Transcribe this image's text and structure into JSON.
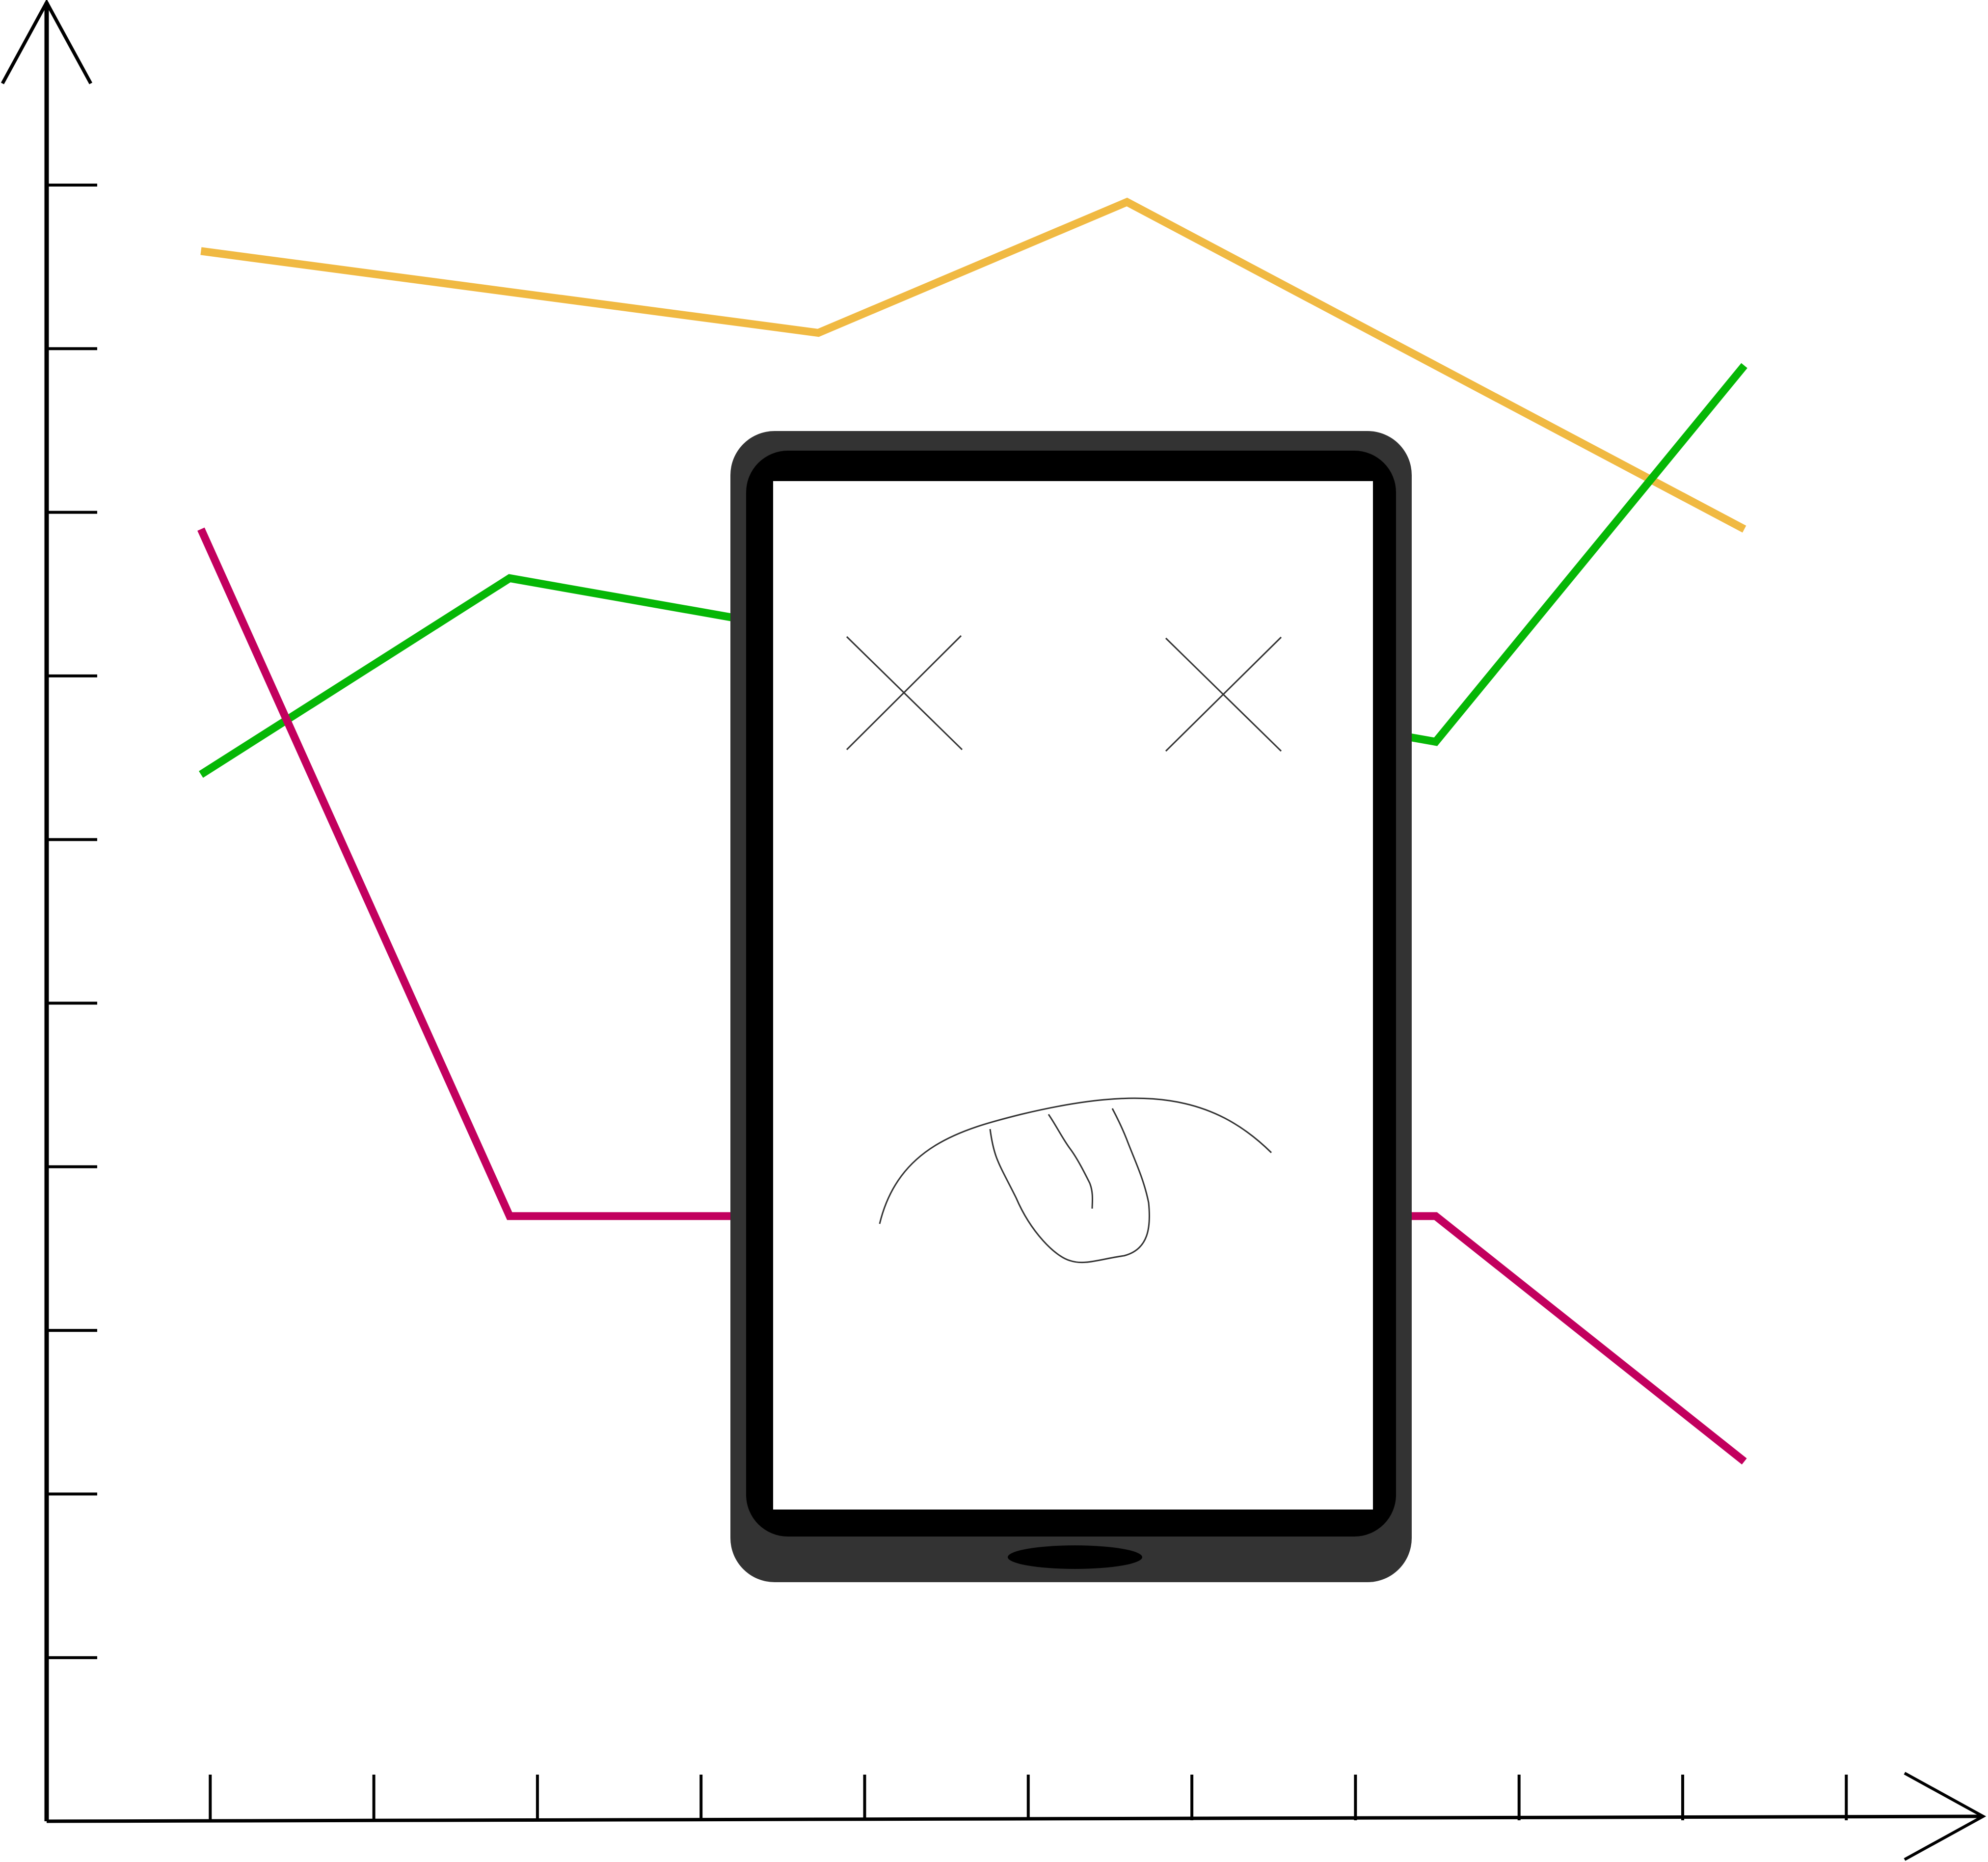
{
  "colors": {
    "background": "#ffffff",
    "axis": "#000000",
    "series_orange": "#f0b942",
    "series_green": "#06b706",
    "series_magenta": "#c2005e",
    "phone_body": "#333333",
    "phone_bezel": "#000000",
    "phone_screen": "#ffffff",
    "face_stroke": "#333333"
  },
  "illustration": {
    "subject": "phone-with-dead-face-over-declining-line-chart",
    "icons": [
      "phone-icon",
      "x-eye-icon",
      "tongue-out-mouth-icon"
    ]
  },
  "chart_data": {
    "type": "line",
    "title": "",
    "xlabel": "",
    "ylabel": "",
    "x_ticks": 11,
    "y_ticks": 10,
    "tick_labels": false,
    "legend": "none",
    "grid": false,
    "xlim": [
      0,
      12
    ],
    "ylim": [
      0,
      11
    ],
    "x": [
      1,
      3,
      5,
      7,
      9,
      11
    ],
    "series": [
      {
        "color_key": "series_orange",
        "values": [
          9.6,
          null,
          9.1,
          9.9,
          null,
          7.9
        ]
      },
      {
        "color_key": "series_green",
        "values": [
          6.4,
          7.6,
          null,
          null,
          6.6,
          8.9
        ]
      },
      {
        "color_key": "series_magenta",
        "values": [
          7.9,
          3.7,
          null,
          null,
          3.7,
          2.2
        ]
      }
    ]
  }
}
